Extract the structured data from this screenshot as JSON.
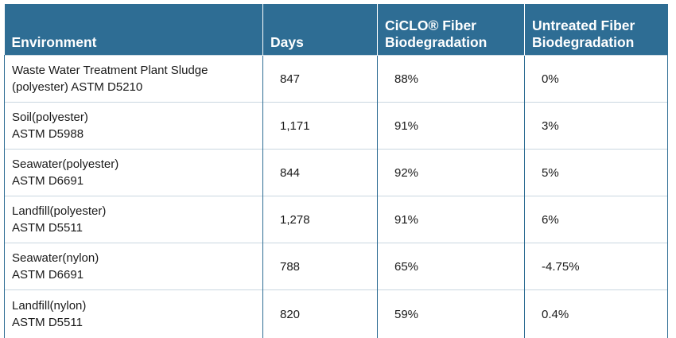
{
  "table": {
    "headers": {
      "environment": "Environment",
      "days": "Days",
      "ciclo_line1": "CiCLO® Fiber",
      "ciclo_line2": "Biodegradation",
      "untreated_line1": "Untreated Fiber",
      "untreated_line2": "Biodegradation"
    },
    "rows": [
      {
        "env_line1": "Waste Water Treatment Plant Sludge",
        "env_line2": "(polyester)  ASTM D5210",
        "days": "847",
        "ciclo": "88%",
        "untreated": "0%"
      },
      {
        "env_line1": "Soil(polyester)",
        "env_line2": "ASTM D5988",
        "days": "1,171",
        "ciclo": "91%",
        "untreated": "3%"
      },
      {
        "env_line1": "Seawater(polyester)",
        "env_line2": "ASTM D6691",
        "days": "844",
        "ciclo": "92%",
        "untreated": "5%"
      },
      {
        "env_line1": "Landfill(polyester)",
        "env_line2": "ASTM D5511",
        "days": "1,278",
        "ciclo": "91%",
        "untreated": "6%"
      },
      {
        "env_line1": "Seawater(nylon)",
        "env_line2": "ASTM D6691",
        "days": "788",
        "ciclo": "65%",
        "untreated": "-4.75%"
      },
      {
        "env_line1": "Landfill(nylon)",
        "env_line2": "ASTM D5511",
        "days": "820",
        "ciclo": "59%",
        "untreated": "0.4%"
      }
    ]
  },
  "colors": {
    "header_bg": "#2e6d94",
    "header_text": "#ffffff",
    "row_divider": "#c9d6e0"
  }
}
